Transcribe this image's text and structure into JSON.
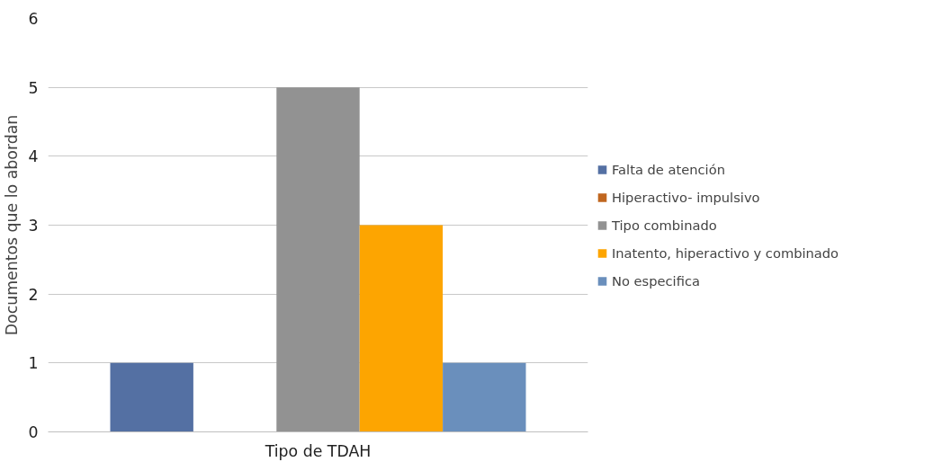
{
  "chart_data": {
    "type": "bar",
    "ylabel": "Documentos que lo abordan",
    "categories": [
      "Tipo de TDAH"
    ],
    "series": [
      {
        "name": "Falta de atención",
        "color": "#5470a3",
        "values": [
          1
        ]
      },
      {
        "name": "Hiperactivo- impulsivo",
        "color": "#c0661f",
        "values": [
          0
        ]
      },
      {
        "name": "Tipo combinado",
        "color": "#929292",
        "values": [
          5
        ]
      },
      {
        "name": "Inatento, hiperactivo y combinado",
        "color": "#fda501",
        "values": [
          3
        ]
      },
      {
        "name": "No especifica",
        "color": "#6a8fbc",
        "values": [
          1
        ]
      }
    ],
    "ylim": [
      0,
      6
    ],
    "yticks": [
      0,
      1,
      2,
      3,
      4,
      5,
      6
    ],
    "grid": "y",
    "legend": "right"
  }
}
